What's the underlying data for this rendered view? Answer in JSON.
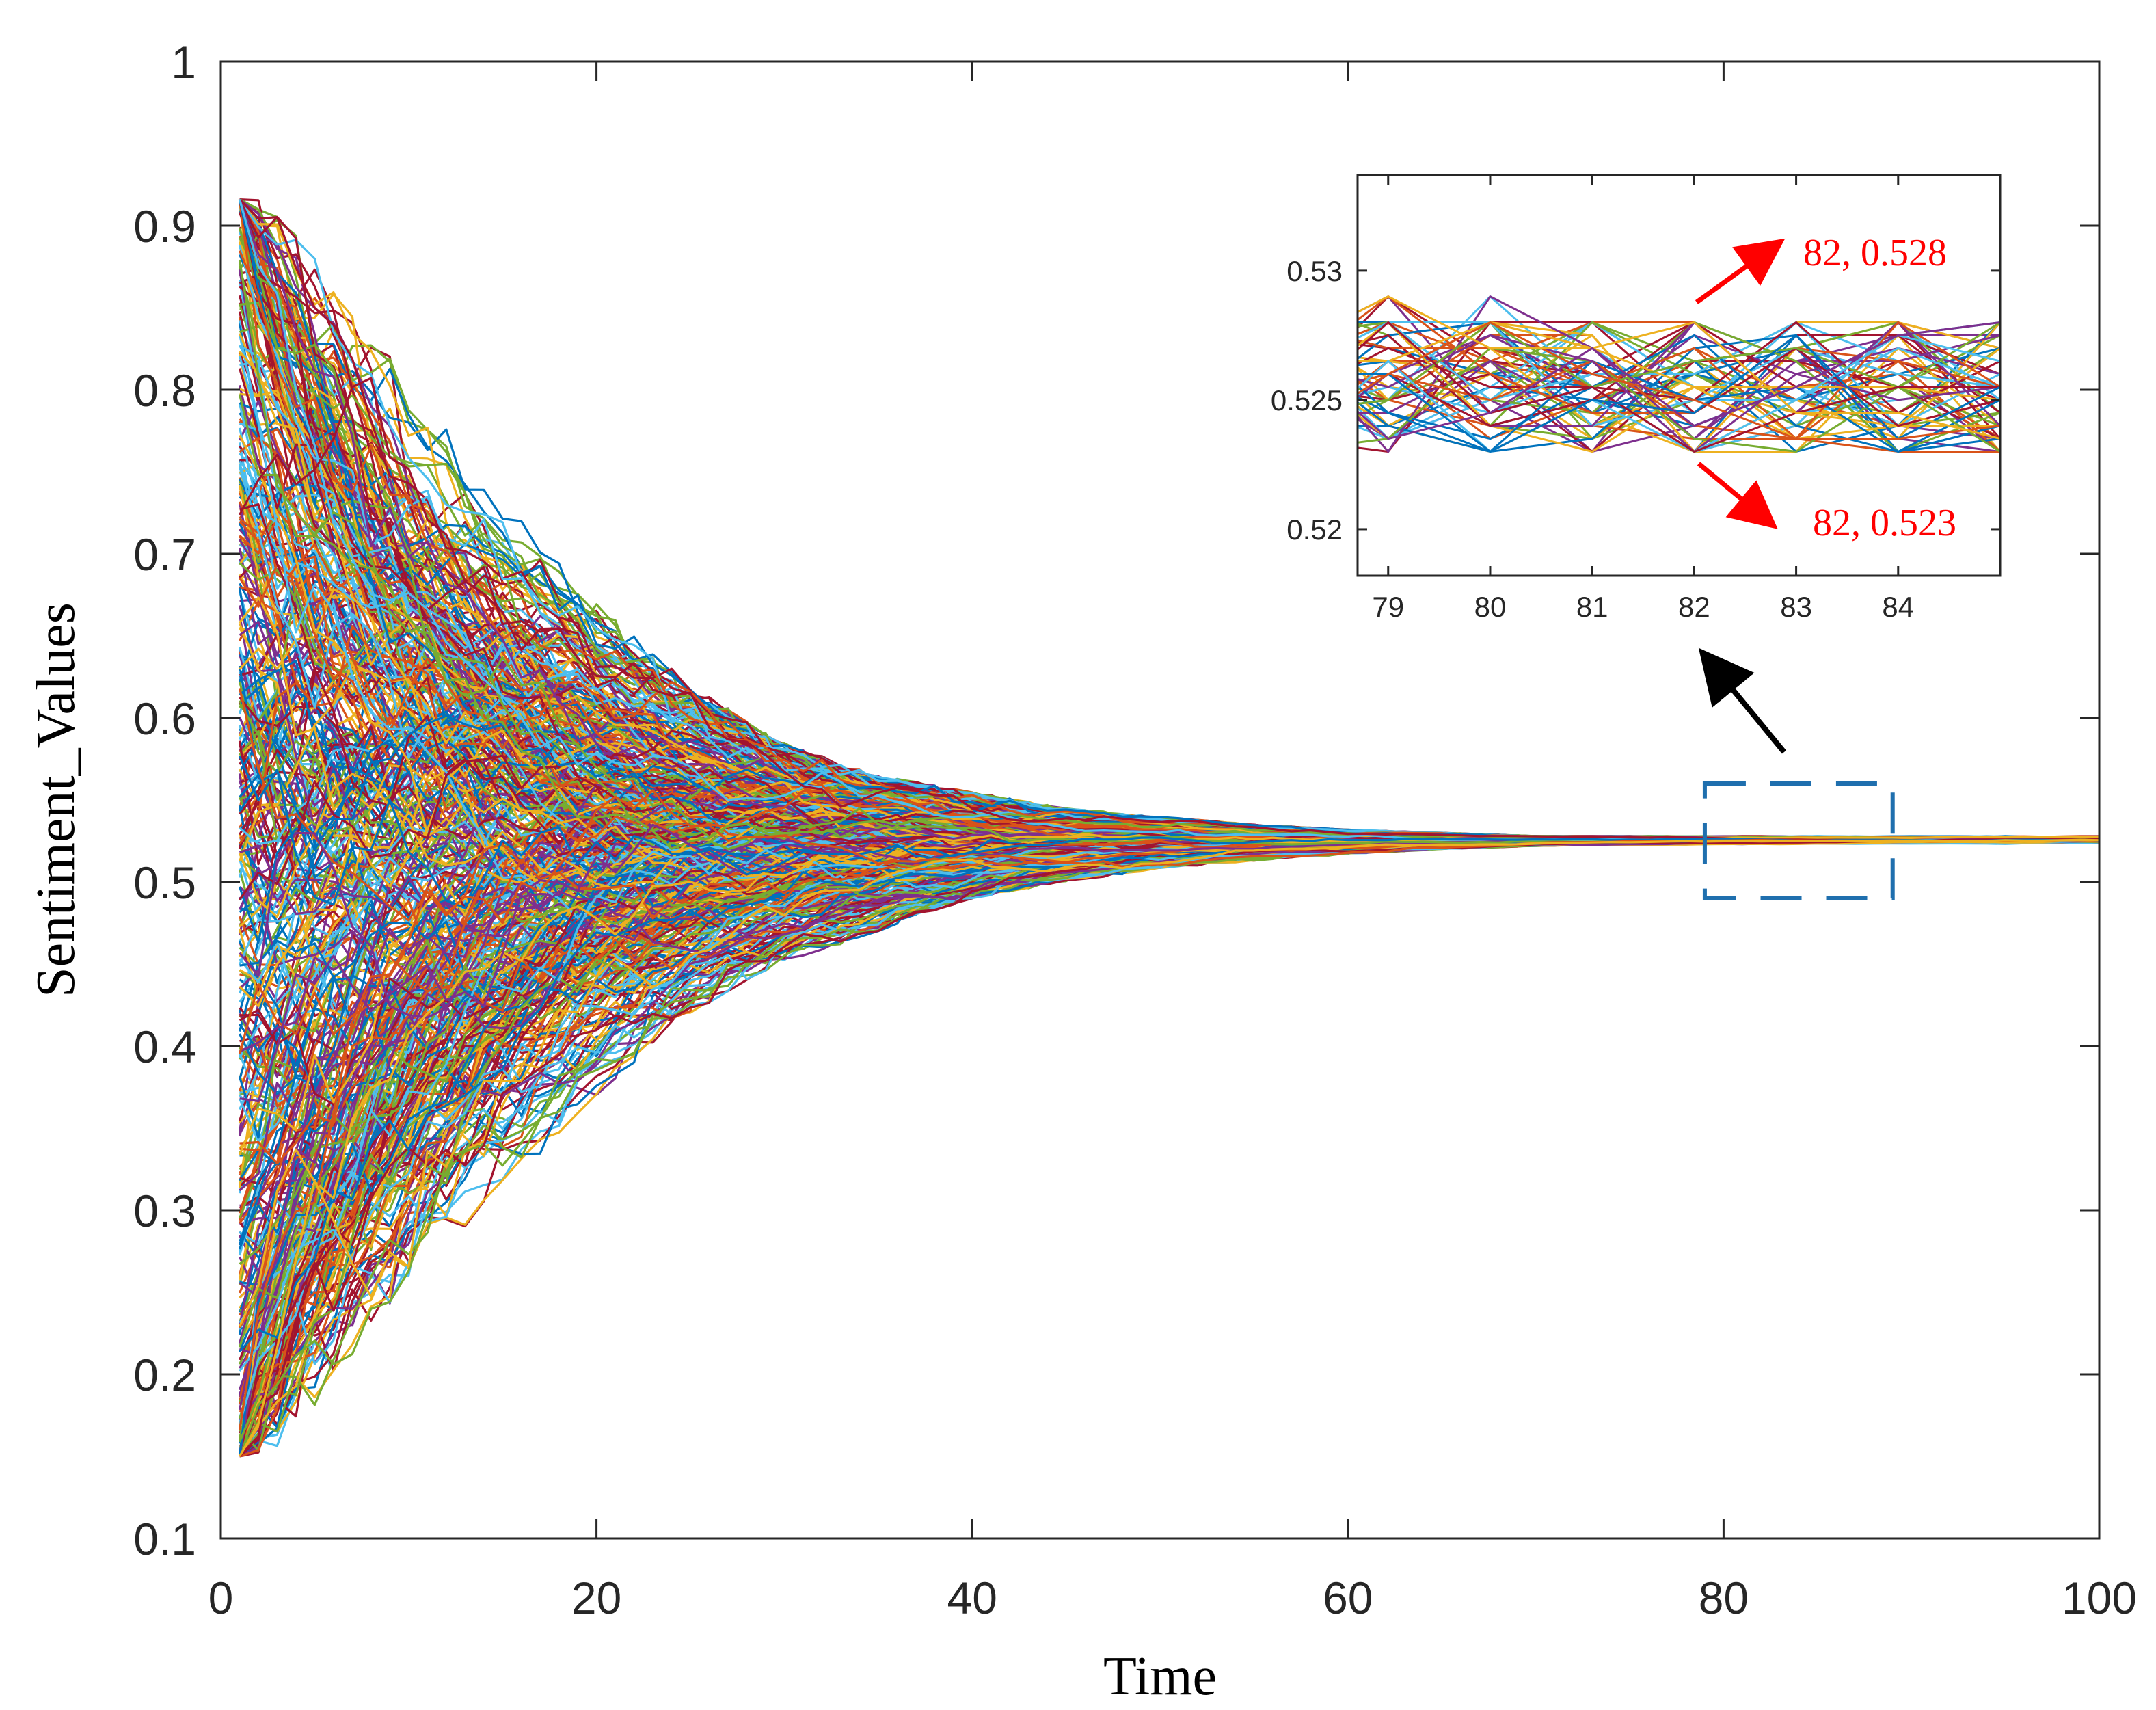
{
  "chart_data": [
    {
      "type": "line",
      "role": "main",
      "title": "",
      "xlabel": "Time",
      "ylabel": "Sentiment_Values",
      "xlim": [
        0,
        100
      ],
      "ylim": [
        0.1,
        1
      ],
      "xticks": [
        0,
        20,
        40,
        60,
        80,
        100
      ],
      "xtick_labels": [
        "0",
        "20",
        "40",
        "60",
        "80",
        "100"
      ],
      "yticks": [
        0.1,
        0.2,
        0.3,
        0.4,
        0.5,
        0.6,
        0.7,
        0.8,
        0.9,
        1
      ],
      "ytick_labels": [
        "0.1",
        "0.2",
        "0.3",
        "0.4",
        "0.5",
        "0.6",
        "0.7",
        "0.8",
        "0.9",
        "1"
      ],
      "grid": false,
      "legend": "none",
      "x_range_of_steps": [
        1,
        100
      ],
      "initial_value_range": [
        0.15,
        0.916
      ],
      "convergence_value": 0.526,
      "approx_series_count": 500,
      "envelope": {
        "x": [
          1,
          2,
          3,
          5,
          10,
          15,
          20,
          25,
          30,
          35,
          40,
          45,
          50,
          55,
          60,
          65,
          70,
          80,
          90,
          100
        ],
        "upper": [
          0.916,
          0.916,
          0.916,
          0.885,
          0.805,
          0.74,
          0.67,
          0.62,
          0.585,
          0.565,
          0.555,
          0.545,
          0.54,
          0.535,
          0.532,
          0.53,
          0.528,
          0.528,
          0.528,
          0.528
        ],
        "lower": [
          0.15,
          0.15,
          0.15,
          0.175,
          0.26,
          0.31,
          0.37,
          0.42,
          0.45,
          0.47,
          0.49,
          0.5,
          0.508,
          0.513,
          0.517,
          0.52,
          0.522,
          0.523,
          0.523,
          0.523
        ]
      },
      "zoom_box": {
        "x_range": [
          79,
          89
        ],
        "y_range": [
          0.49,
          0.56
        ]
      },
      "colors": [
        "#0072BD",
        "#D95319",
        "#EDB120",
        "#7E2F8E",
        "#77AC30",
        "#4DBEEE",
        "#A2142F"
      ]
    },
    {
      "type": "line",
      "role": "inset",
      "xlim": [
        78.7,
        85
      ],
      "ylim": [
        0.5182,
        0.5337
      ],
      "xticks": [
        79,
        80,
        81,
        82,
        83,
        84
      ],
      "xtick_labels": [
        "79",
        "80",
        "81",
        "82",
        "83",
        "84"
      ],
      "yticks": [
        0.52,
        0.525,
        0.53
      ],
      "ytick_labels": [
        "0.52",
        "0.525",
        "0.53"
      ],
      "grid": false,
      "legend": "none",
      "band_upper": 0.528,
      "band_lower": 0.523,
      "annotations": [
        {
          "text": "82, 0.528",
          "x": 82,
          "y": 0.528,
          "color": "#FF0000"
        },
        {
          "text": "82, 0.523",
          "x": 82,
          "y": 0.523,
          "color": "#FF0000"
        }
      ]
    }
  ]
}
